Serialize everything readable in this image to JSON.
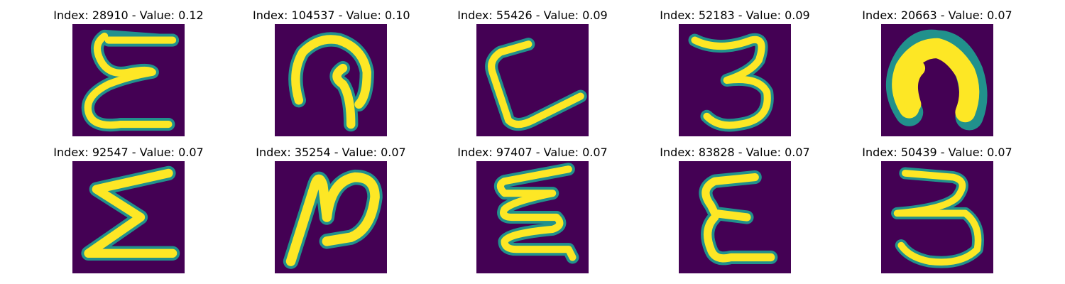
{
  "colors": {
    "background": "#440154",
    "stroke_core": "#fde725",
    "stroke_edge": "#35b779",
    "stroke_halo": "#21918c"
  },
  "panels": [
    {
      "index": "28910",
      "value": "0.12",
      "title": "Index: 28910 - Value: 0.12"
    },
    {
      "index": "104537",
      "value": "0.10",
      "title": "Index: 104537 - Value: 0.10"
    },
    {
      "index": "55426",
      "value": "0.09",
      "title": "Index: 55426 - Value: 0.09"
    },
    {
      "index": "52183",
      "value": "0.09",
      "title": "Index: 52183 - Value: 0.09"
    },
    {
      "index": "20663",
      "value": "0.07",
      "title": "Index: 20663 - Value: 0.07"
    },
    {
      "index": "92547",
      "value": "0.07",
      "title": "Index: 92547 - Value: 0.07"
    },
    {
      "index": "35254",
      "value": "0.07",
      "title": "Index: 35254 - Value: 0.07"
    },
    {
      "index": "97407",
      "value": "0.07",
      "title": "Index: 97407 - Value: 0.07"
    },
    {
      "index": "83828",
      "value": "0.07",
      "title": "Index: 83828 - Value: 0.07"
    },
    {
      "index": "50439",
      "value": "0.07",
      "title": "Index: 50439 - Value: 0.07"
    }
  ]
}
